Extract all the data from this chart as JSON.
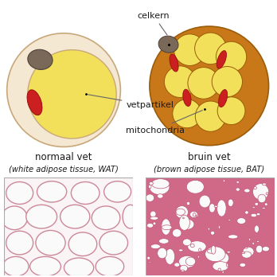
{
  "bg_color": "#ffffff",
  "label_celkern": "celkern",
  "label_vetpartikel": "vetpartikel",
  "label_mitochondria": "mitochondria",
  "label_normaal_vet": "normaal vet",
  "label_normaal_vet_sub1": "(white adipose tissue, WAT)",
  "label_bruin_vet": "bruin vet",
  "label_bruin_vet_sub1": "(brown adipose tissue, BAT)",
  "white_cell_bg": "#f5e8d2",
  "white_cell_edge": "#c8a87a",
  "white_fat_color": "#f2e05a",
  "white_fat_edge": "#c8a87a",
  "white_nucleus_color": "#7a6858",
  "white_mito_color": "#cc2020",
  "brown_cell_bg": "#c87818",
  "brown_cell_edge": "#9a5c0a",
  "brown_fat_color": "#f2e05a",
  "brown_fat_edge": "#9a5c0a",
  "brown_nucleus_color": "#7a6858",
  "brown_mito_color": "#cc2020",
  "text_color": "#1a1a1a",
  "line_color": "#666666",
  "wat_bg": "#faf4f6",
  "wat_cell_fill": "#fafafa",
  "wat_cell_edge": "#cc8899",
  "bat_bg": "#d06888",
  "bat_cell_fill": "#fafafa",
  "bat_cell_edge": "#b04060"
}
